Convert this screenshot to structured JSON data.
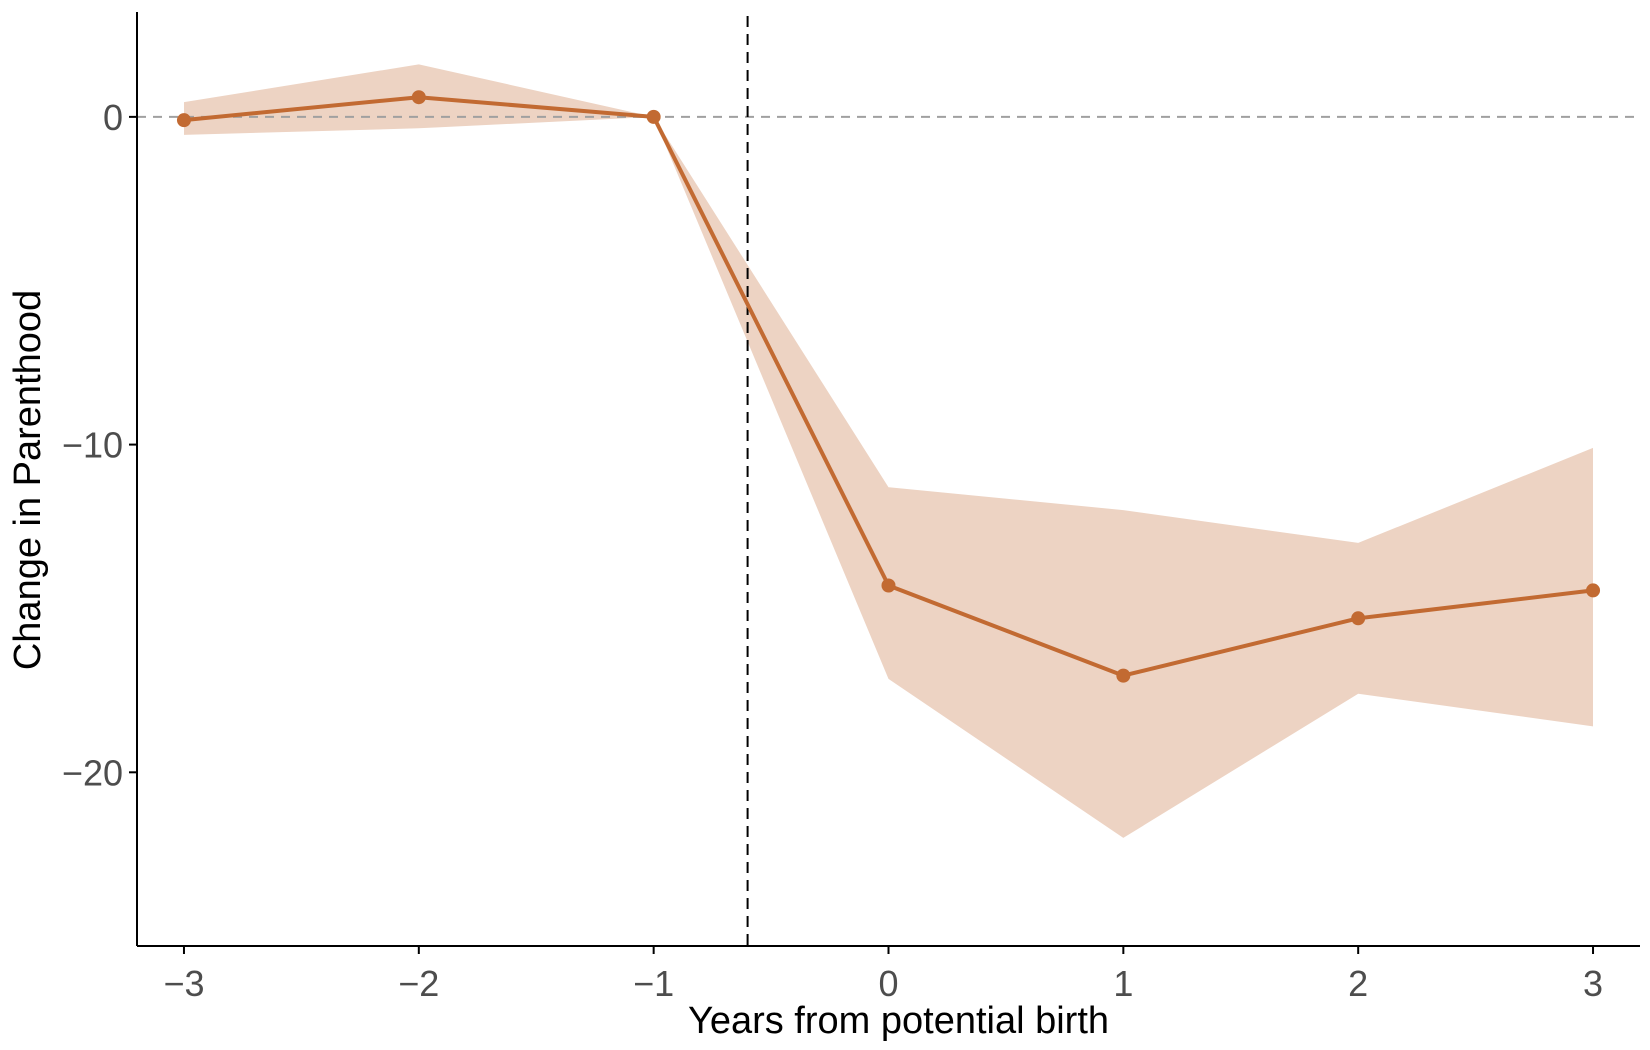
{
  "chart_data": {
    "type": "line",
    "title": "",
    "xlabel": "Years from potential birth",
    "ylabel": "Change in Parenthood",
    "x": [
      -3,
      -2,
      -1,
      0,
      1,
      2,
      3
    ],
    "series": [
      {
        "values": [
          -0.1,
          0.6,
          0.0,
          -14.3,
          -17.05,
          -15.3,
          -14.45
        ],
        "ci_lower": [
          -0.55,
          -0.35,
          0.0,
          -17.15,
          -22.0,
          -17.6,
          -18.6
        ],
        "ci_upper": [
          0.45,
          1.6,
          0.0,
          -11.3,
          -12.0,
          -13.0,
          -10.1
        ]
      }
    ],
    "xticks": [
      -3,
      -2,
      -1,
      0,
      1,
      2,
      3
    ],
    "xtick_labels": [
      "−3",
      "−2",
      "−1",
      "0",
      "1",
      "2",
      "3"
    ],
    "yticks": [
      0,
      -10,
      -20
    ],
    "ytick_labels": [
      "0",
      "−10",
      "−20"
    ],
    "xlim": [
      -3.2,
      3.2
    ],
    "ylim": [
      -25.3,
      3.2
    ],
    "reference_lines": {
      "horizontal_y": 0,
      "vertical_x": -0.6
    },
    "grid": false,
    "colors": {
      "line": "#c26a32",
      "band": "#edd3c3",
      "hline": "#a0a0a0",
      "vline": "#000000",
      "axis": "#000000"
    }
  }
}
